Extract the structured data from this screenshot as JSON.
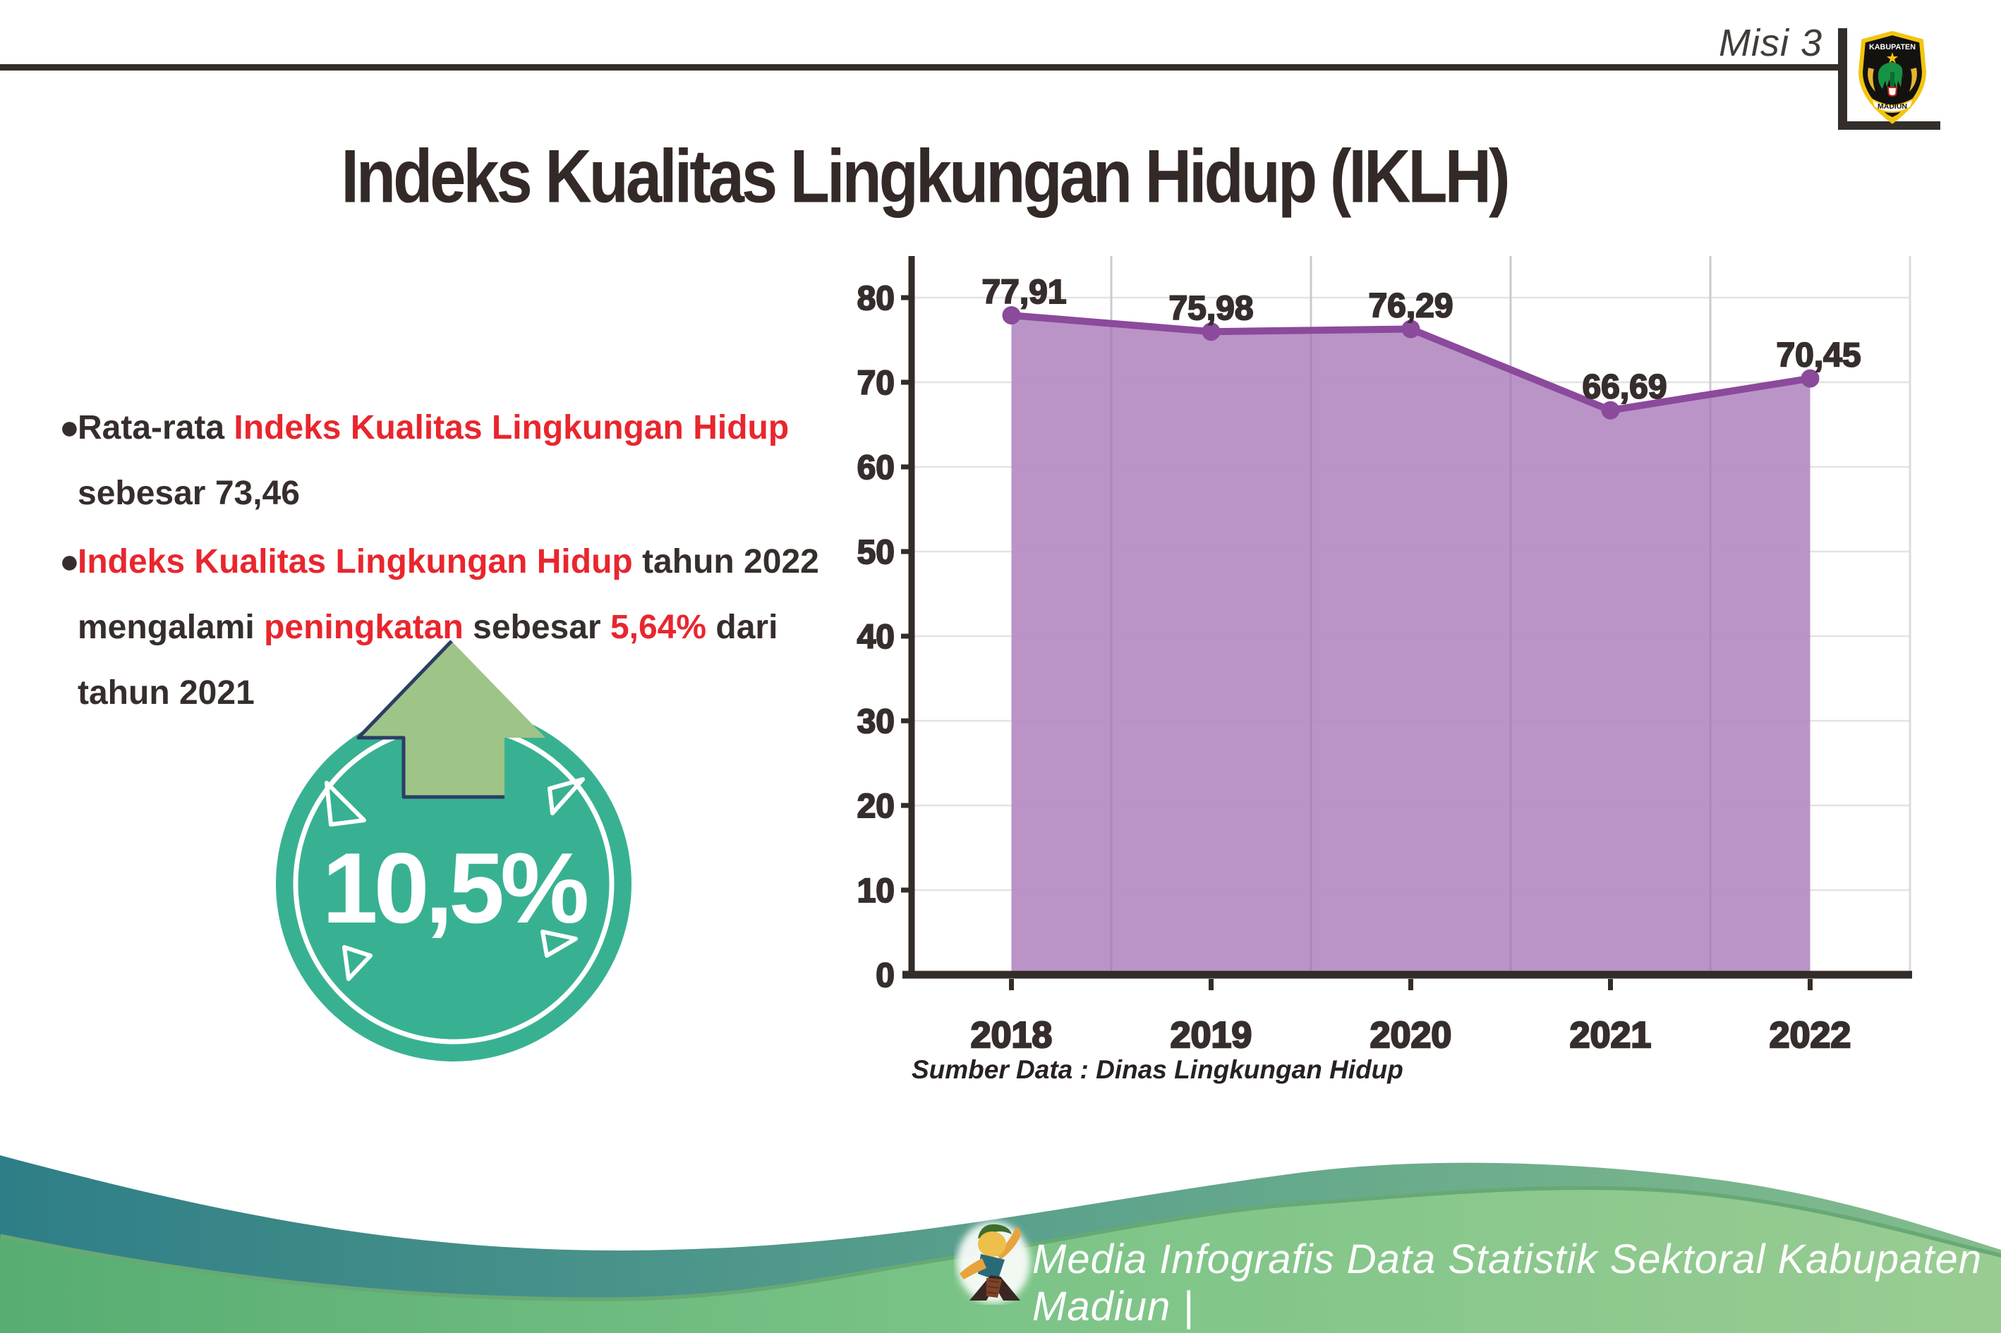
{
  "header": {
    "mission_label": "Misi 3",
    "title": "Indeks Kualitas Lingkungan Hidup (IKLH)",
    "logo": {
      "top": "KABUPATEN",
      "bottom": "MADIUN"
    }
  },
  "bullets": {
    "item1": {
      "segments": [
        {
          "text": "Rata-rata ",
          "style": "dark"
        },
        {
          "text": "Indeks Kualitas Lingkungan Hidup",
          "style": "red"
        },
        {
          "text": " sebesar 73,46",
          "style": "dark"
        }
      ]
    },
    "item2": {
      "segments": [
        {
          "text": "Indeks Kualitas Lingkungan Hidup",
          "style": "red"
        },
        {
          "text": " tahun 2022 mengalami ",
          "style": "dark"
        },
        {
          "text": "peningkatan",
          "style": "red"
        },
        {
          "text": " sebesar ",
          "style": "dark"
        },
        {
          "text": "5,64%",
          "style": "red"
        },
        {
          "text": " dari tahun 2021",
          "style": "dark"
        }
      ]
    }
  },
  "badge": {
    "value": "10,5%",
    "circle_color": "#38b192",
    "arrow_color": "#9ec487",
    "arrow_outline_color": "#2b3e66"
  },
  "chart_data": {
    "type": "area",
    "title": "Indeks Kualitas Lingkungan Hidup (IKLH)",
    "categories": [
      "2018",
      "2019",
      "2020",
      "2021",
      "2022"
    ],
    "values": [
      77.91,
      75.98,
      76.29,
      66.69,
      70.45
    ],
    "value_labels": [
      "77,91",
      "75,98",
      "76,29",
      "66,69",
      "70,45"
    ],
    "xlabel": "",
    "ylabel": "",
    "ylim": [
      0,
      80
    ],
    "ytick_step": 10,
    "grid": true,
    "legend": "none",
    "fill_color": "#b48bc2",
    "line_color": "#8b4a9b",
    "axis_color": "#332c28",
    "grid_color": "#e5e2e2",
    "label_color": "#362e2c",
    "source_note": "Sumber Data : Dinas Lingkungan Hidup"
  },
  "footer": {
    "credit": "Media Infografis Data Statistik Sektoral Kabupaten Madiun |"
  },
  "colors": {
    "red_accent": "#e8262e",
    "text_dark": "#362e2c",
    "teal_wave_start": "#2e7e87",
    "teal_wave_end": "#83bc8d",
    "green_wave_start": "#57ad72",
    "green_wave_end": "#99cc93",
    "wave_rim": "#67a975"
  }
}
